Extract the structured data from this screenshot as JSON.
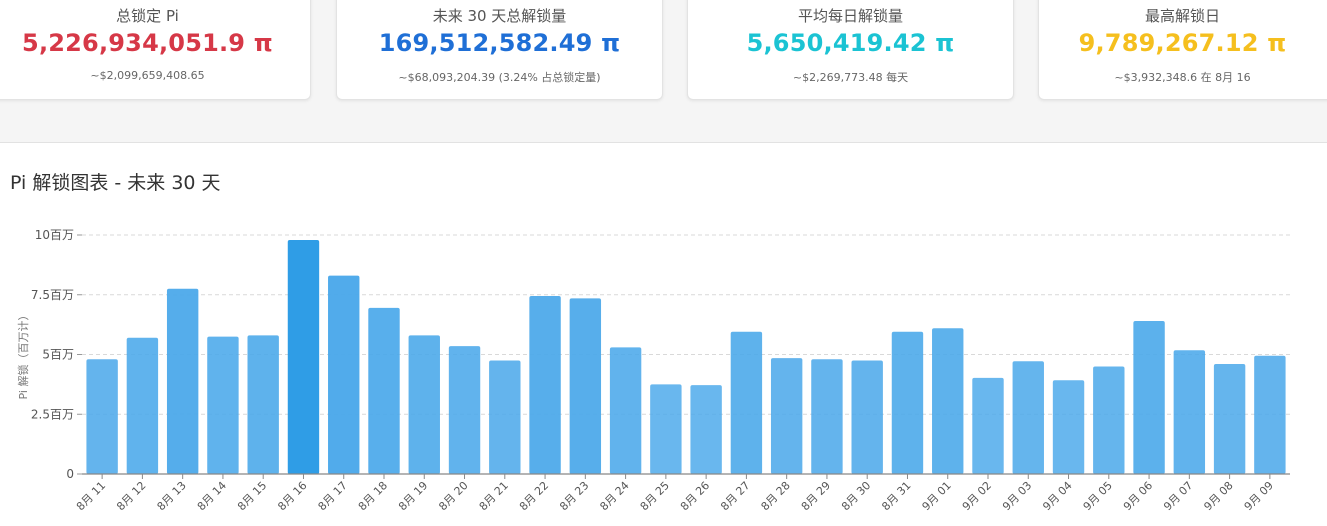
{
  "stats": [
    {
      "label": "总锁定 Pi",
      "value": "5,226,934,051.9 π",
      "sub": "~$2,099,659,408.65",
      "color": "#d63847"
    },
    {
      "label": "未来 30 天总解锁量",
      "value": "169,512,582.49 π",
      "sub": "~$68,093,204.39 (3.24% 占总锁定量)",
      "color": "#1f6fd6"
    },
    {
      "label": "平均每日解锁量",
      "value": "5,650,419.42 π",
      "sub": "~$2,269,773.48 每天",
      "color": "#1bc3d3"
    },
    {
      "label": "最高解锁日",
      "value": "9,789,267.12 π",
      "sub": "~$3,932,348.6 在 8月 16",
      "color": "#f5bf1e"
    }
  ],
  "chart_title": "Pi 解锁图表 - 未来 30 天",
  "chart_data": {
    "type": "bar",
    "title": "Pi 解锁图表 - 未来 30 天",
    "xlabel": "",
    "ylabel": "Pi 解锁（百万计）",
    "categories": [
      "8月 11",
      "8月 12",
      "8月 13",
      "8月 14",
      "8月 15",
      "8月 16",
      "8月 17",
      "8月 18",
      "8月 19",
      "8月 20",
      "8月 21",
      "8月 22",
      "8月 23",
      "8月 24",
      "8月 25",
      "8月 26",
      "8月 27",
      "8月 28",
      "8月 29",
      "8月 30",
      "8月 31",
      "9月 01",
      "9月 02",
      "9月 03",
      "9月 04",
      "9月 05",
      "9月 06",
      "9月 07",
      "9月 08",
      "9月 09"
    ],
    "values": [
      4.8,
      5.7,
      7.75,
      5.75,
      5.8,
      9.79,
      8.3,
      6.95,
      5.8,
      5.35,
      4.75,
      7.45,
      7.35,
      5.3,
      3.75,
      3.72,
      5.95,
      4.85,
      4.8,
      4.75,
      5.95,
      6.1,
      4.02,
      4.72,
      3.92,
      4.5,
      6.4,
      5.18,
      4.6,
      4.95
    ],
    "ylim": [
      0,
      10
    ],
    "yticks": [
      0,
      2.5,
      5,
      7.5,
      10
    ],
    "ytick_labels": [
      "0",
      "2.5百万",
      "5百万",
      "7.5百万",
      "10百万"
    ],
    "grid": true,
    "bar_color": "#4aa8ea",
    "max_bar_color": "#2f9de6"
  }
}
